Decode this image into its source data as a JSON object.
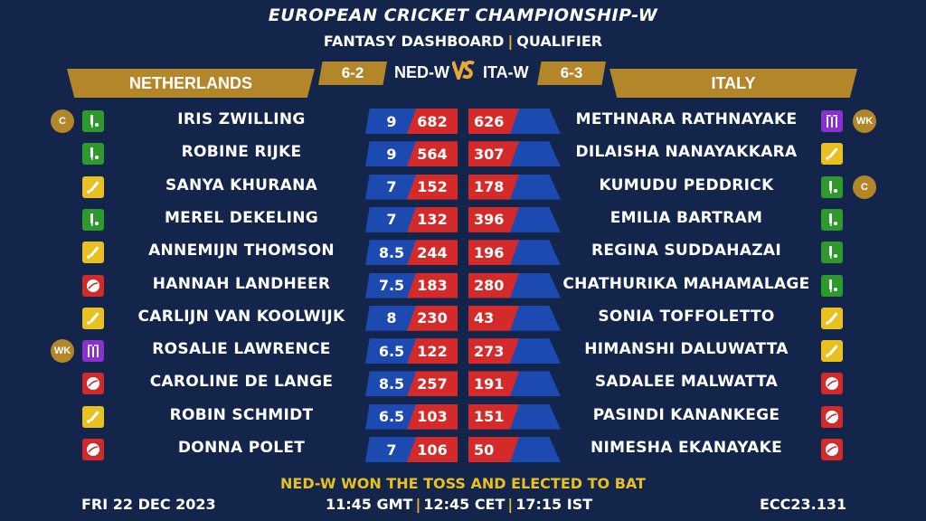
{
  "header": {
    "title": "EUROPEAN CRICKET CHAMPIONSHIP-W",
    "subtitle_left": "FANTASY DASHBOARD",
    "subtitle_right": "QUALIFIER"
  },
  "teams": {
    "left": {
      "name": "NETHERLANDS",
      "code": "NED-W",
      "record": "6-2"
    },
    "right": {
      "name": "ITALY",
      "code": "ITA-W",
      "record": "6-3"
    },
    "vs": "VS"
  },
  "players": [
    {
      "left_name": "IRIS ZWILLING",
      "left_role": "bat",
      "left_badge": "C",
      "credit": "9",
      "left_pts": "682",
      "right_pts": "626",
      "right_name": "METHNARA RATHNAYAKE",
      "right_role": "wk",
      "right_badge": "WK"
    },
    {
      "left_name": "ROBINE RIJKE",
      "left_role": "bat",
      "left_badge": "",
      "credit": "9",
      "left_pts": "564",
      "right_pts": "307",
      "right_name": "DILAISHA NANAYAKKARA",
      "right_role": "ar",
      "right_badge": ""
    },
    {
      "left_name": "SANYA KHURANA",
      "left_role": "ar",
      "left_badge": "",
      "credit": "7",
      "left_pts": "152",
      "right_pts": "178",
      "right_name": "KUMUDU PEDDRICK",
      "right_role": "bat",
      "right_badge": "C"
    },
    {
      "left_name": "MEREL DEKELING",
      "left_role": "bat",
      "left_badge": "",
      "credit": "7",
      "left_pts": "132",
      "right_pts": "396",
      "right_name": "EMILIA BARTRAM",
      "right_role": "bat",
      "right_badge": ""
    },
    {
      "left_name": "ANNEMIJN THOMSON",
      "left_role": "ar",
      "left_badge": "",
      "credit": "8.5",
      "left_pts": "244",
      "right_pts": "196",
      "right_name": "REGINA SUDDAHAZAI",
      "right_role": "bat",
      "right_badge": ""
    },
    {
      "left_name": "HANNAH LANDHEER",
      "left_role": "bowl",
      "left_badge": "",
      "credit": "7.5",
      "left_pts": "183",
      "right_pts": "280",
      "right_name": "CHATHURIKA MAHAMALAGE",
      "right_role": "bat",
      "right_badge": ""
    },
    {
      "left_name": "CARLIJN VAN KOOLWIJK",
      "left_role": "ar",
      "left_badge": "",
      "credit": "8",
      "left_pts": "230",
      "right_pts": "43",
      "right_name": "SONIA TOFFOLETTO",
      "right_role": "ar",
      "right_badge": ""
    },
    {
      "left_name": "ROSALIE LAWRENCE",
      "left_role": "wk",
      "left_badge": "WK",
      "credit": "6.5",
      "left_pts": "122",
      "right_pts": "273",
      "right_name": "HIMANSHI DALUWATTA",
      "right_role": "ar",
      "right_badge": ""
    },
    {
      "left_name": "CAROLINE DE LANGE",
      "left_role": "bowl",
      "left_badge": "",
      "credit": "8.5",
      "left_pts": "257",
      "right_pts": "191",
      "right_name": "SADALEE MALWATTA",
      "right_role": "bowl",
      "right_badge": ""
    },
    {
      "left_name": "ROBIN SCHMIDT",
      "left_role": "ar",
      "left_badge": "",
      "credit": "6.5",
      "left_pts": "103",
      "right_pts": "151",
      "right_name": "PASINDI KANANKEGE",
      "right_role": "bowl",
      "right_badge": ""
    },
    {
      "left_name": "DONNA POLET",
      "left_role": "bowl",
      "left_badge": "",
      "credit": "7",
      "left_pts": "106",
      "right_pts": "50",
      "right_name": "NIMESHA EKANAYAKE",
      "right_role": "bowl",
      "right_badge": ""
    }
  ],
  "toss": "NED-W WON THE TOSS AND ELECTED TO BAT",
  "footer": {
    "date": "FRI 22 DEC 2023",
    "time_gmt": "11:45 GMT",
    "time_cet": "12:45 CET",
    "time_ist": "17:15 IST",
    "match_code": "ECC23.131"
  },
  "colors": {
    "background": "#13254a",
    "gold": "#b3862a",
    "credit_blue": "#1d4ab0",
    "points_red": "#d42a2a",
    "toss_yellow": "#e8c020"
  }
}
